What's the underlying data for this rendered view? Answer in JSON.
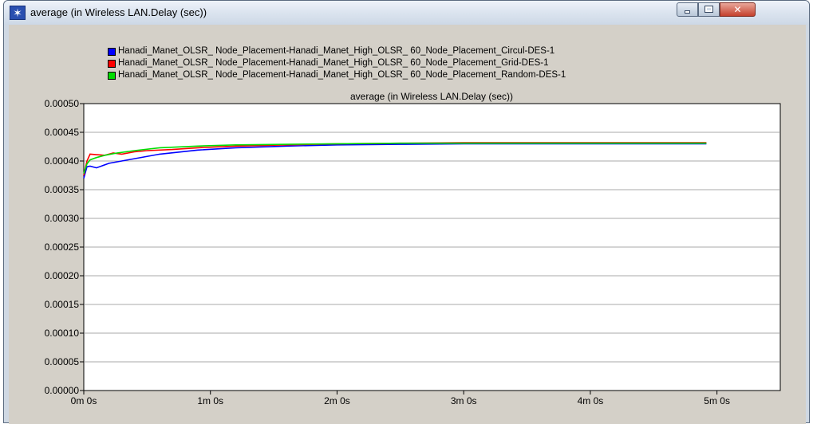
{
  "window": {
    "title": "average (in Wireless LAN.Delay (sec))",
    "icon": "star-icon",
    "controls": [
      "minimize-icon",
      "maximize-icon",
      "close-icon"
    ]
  },
  "colors": {
    "series_blue": "#0000ff",
    "series_red": "#ff0000",
    "series_green": "#00dd00",
    "plot_background": "#ffffff",
    "window_background": "#d4d0c8",
    "title_close": "#c4402c"
  },
  "chart_data": {
    "type": "line",
    "title": "average (in Wireless LAN.Delay (sec))",
    "xlabel": "",
    "ylabel": "",
    "xlim": [
      0,
      330
    ],
    "ylim": [
      0,
      0.0005
    ],
    "x_unit": "seconds",
    "grid": true,
    "legend_position": "top",
    "x_ticks": [
      {
        "value": 0,
        "label": "0m 0s"
      },
      {
        "value": 60,
        "label": "1m 0s"
      },
      {
        "value": 120,
        "label": "2m 0s"
      },
      {
        "value": 180,
        "label": "3m 0s"
      },
      {
        "value": 240,
        "label": "4m 0s"
      },
      {
        "value": 300,
        "label": "5m 0s"
      }
    ],
    "y_ticks": [
      {
        "value": 0,
        "label": "0.00000"
      },
      {
        "value": 5e-05,
        "label": "0.00005"
      },
      {
        "value": 0.0001,
        "label": "0.00010"
      },
      {
        "value": 0.00015,
        "label": "0.00015"
      },
      {
        "value": 0.0002,
        "label": "0.00020"
      },
      {
        "value": 0.00025,
        "label": "0.00025"
      },
      {
        "value": 0.0003,
        "label": "0.00030"
      },
      {
        "value": 0.00035,
        "label": "0.00035"
      },
      {
        "value": 0.0004,
        "label": "0.00040"
      },
      {
        "value": 0.00045,
        "label": "0.00045"
      },
      {
        "value": 0.0005,
        "label": "0.00050"
      }
    ],
    "series": [
      {
        "name": "Hanadi_Manet_OLSR_ Node_Placement-Hanadi_Manet_High_OLSR_ 60_Node_Placement_Circul-DES-1",
        "color": "#0000ff",
        "x": [
          0,
          1.5,
          3,
          6,
          12,
          24,
          36,
          54,
          72,
          96,
          120,
          150,
          180,
          210,
          240,
          270,
          295
        ],
        "y": [
          0.00037,
          0.00039,
          0.000391,
          0.000388,
          0.000396,
          0.000404,
          0.000412,
          0.000419,
          0.000423,
          0.000426,
          0.000428,
          0.000429,
          0.00043,
          0.00043,
          0.00043,
          0.00043,
          0.00043
        ]
      },
      {
        "name": "Hanadi_Manet_OLSR_ Node_Placement-Hanadi_Manet_High_OLSR_ 60_Node_Placement_Grid-DES-1",
        "color": "#ff0000",
        "x": [
          0,
          1.5,
          3,
          6,
          10,
          14,
          18,
          24,
          30,
          42,
          54,
          72,
          96,
          120,
          150,
          180,
          210,
          240,
          270,
          295
        ],
        "y": [
          0.000375,
          0.0004,
          0.000412,
          0.000411,
          0.00041,
          0.000414,
          0.000412,
          0.000416,
          0.000418,
          0.00042,
          0.000423,
          0.000426,
          0.000428,
          0.00043,
          0.000431,
          0.000432,
          0.000432,
          0.000432,
          0.000432,
          0.000432
        ]
      },
      {
        "name": "Hanadi_Manet_OLSR_ Node_Placement-Hanadi_Manet_High_OLSR_ 60_Node_Placement_Random-DES-1",
        "color": "#00dd00",
        "x": [
          0,
          1.5,
          3,
          6,
          10,
          16,
          24,
          36,
          54,
          72,
          96,
          120,
          150,
          180,
          210,
          240,
          270,
          295
        ],
        "y": [
          0.000378,
          0.000395,
          0.000402,
          0.000406,
          0.00041,
          0.000414,
          0.000418,
          0.000423,
          0.000426,
          0.000428,
          0.000429,
          0.00043,
          0.000431,
          0.000431,
          0.000431,
          0.000431,
          0.000431,
          0.000431
        ]
      }
    ]
  }
}
